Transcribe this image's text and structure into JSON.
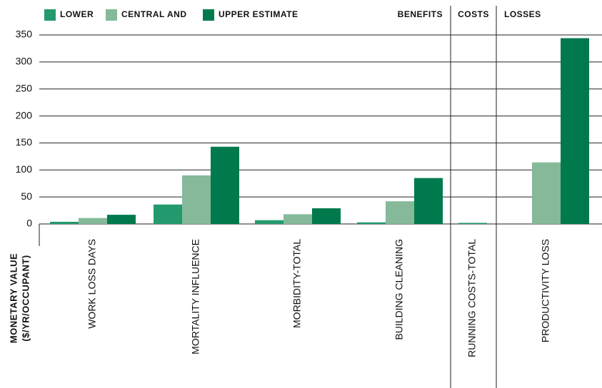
{
  "chart_data": {
    "type": "bar",
    "ylabel": [
      "MONETARY VALUE",
      "($/YR/OCCUPANT)"
    ],
    "sections": [
      "BENEFITS",
      "COSTS",
      "LOSSES"
    ],
    "categories": [
      "WORK LOSS DAYS",
      "MORTALITY INFLUENCE",
      "MORBIDITY-TOTAL",
      "BUILDING CLEANING",
      "RUNNING COSTS-TOTAL",
      "PRODUCTIVITY LOSS"
    ],
    "series": [
      {
        "name": "LOWER",
        "color": "#239a6e",
        "values": [
          4,
          36,
          7,
          3,
          2,
          0
        ]
      },
      {
        "name": "CENTRAL AND",
        "color": "#85b99a",
        "values": [
          11,
          90,
          18,
          42,
          null,
          114
        ]
      },
      {
        "name": "UPPER ESTIMATE",
        "color": "#007a4d",
        "values": [
          17,
          143,
          29,
          85,
          null,
          344
        ]
      }
    ],
    "ylim": [
      0,
      350
    ],
    "yticks": [
      0,
      50,
      100,
      150,
      200,
      250,
      300,
      350
    ],
    "grid": true
  }
}
